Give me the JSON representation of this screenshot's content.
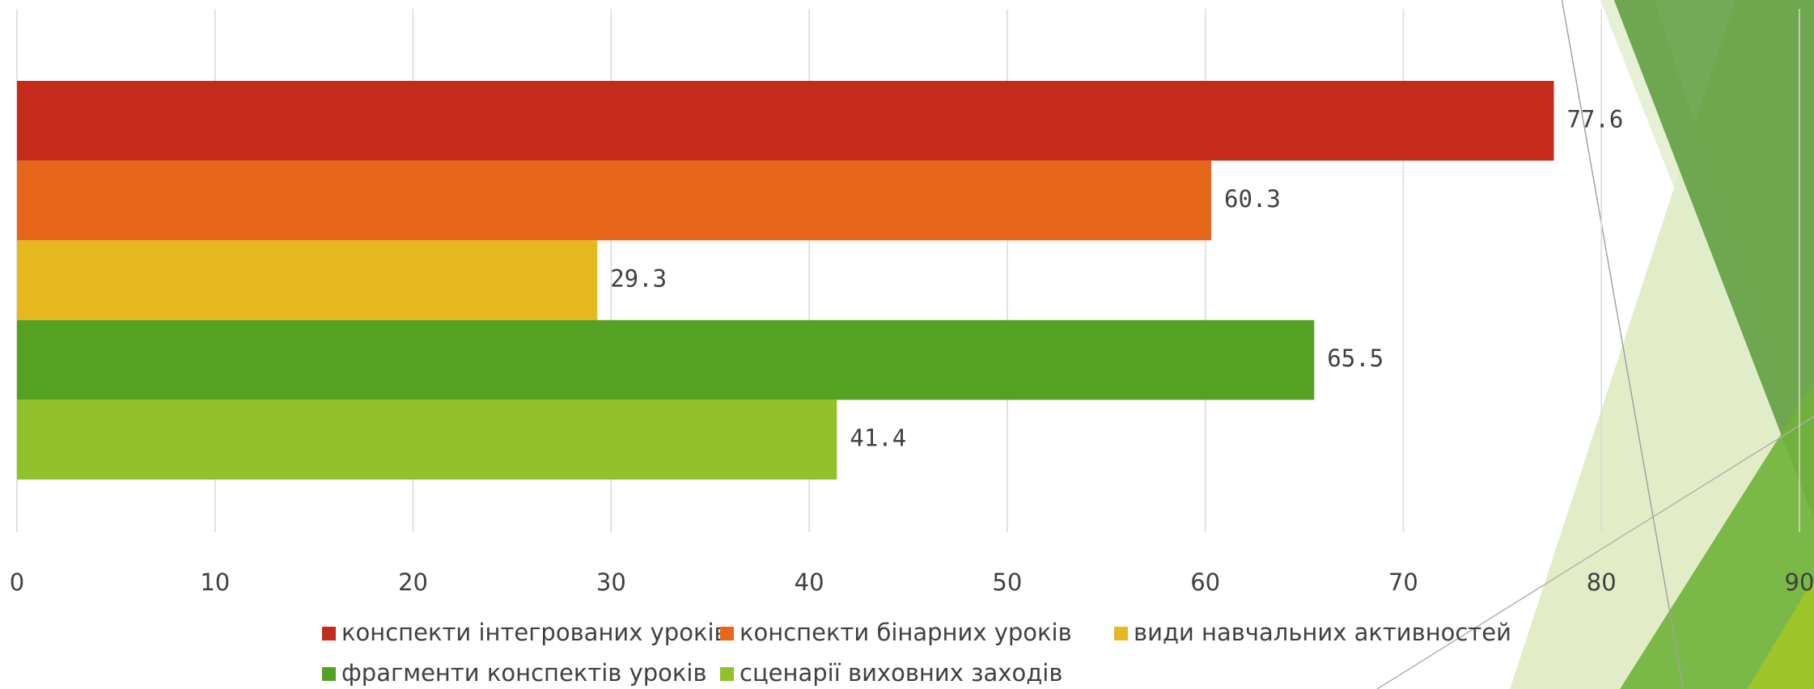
{
  "chart_data": {
    "type": "bar",
    "orientation": "horizontal",
    "categories": [
      null
    ],
    "series": [
      {
        "name": "конспекти інтегрованих уроків",
        "color": "#c42b1c",
        "values": [
          77.6
        ]
      },
      {
        "name": "конспекти бінарних уроків",
        "color": "#e8661a",
        "values": [
          60.3
        ]
      },
      {
        "name": "види навчальних активностей",
        "color": "#e6b820",
        "values": [
          29.3
        ]
      },
      {
        "name": "фрагменти конспектів уроків",
        "color": "#55a124",
        "values": [
          65.5
        ]
      },
      {
        "name": "сценарії виховних заходів",
        "color": "#92c22a",
        "values": [
          41.4
        ]
      }
    ],
    "xlim": [
      0,
      90
    ],
    "xticks": [
      0,
      10,
      20,
      30,
      40,
      50,
      60,
      70,
      80,
      90
    ],
    "grid": true,
    "legend": "bottom"
  }
}
